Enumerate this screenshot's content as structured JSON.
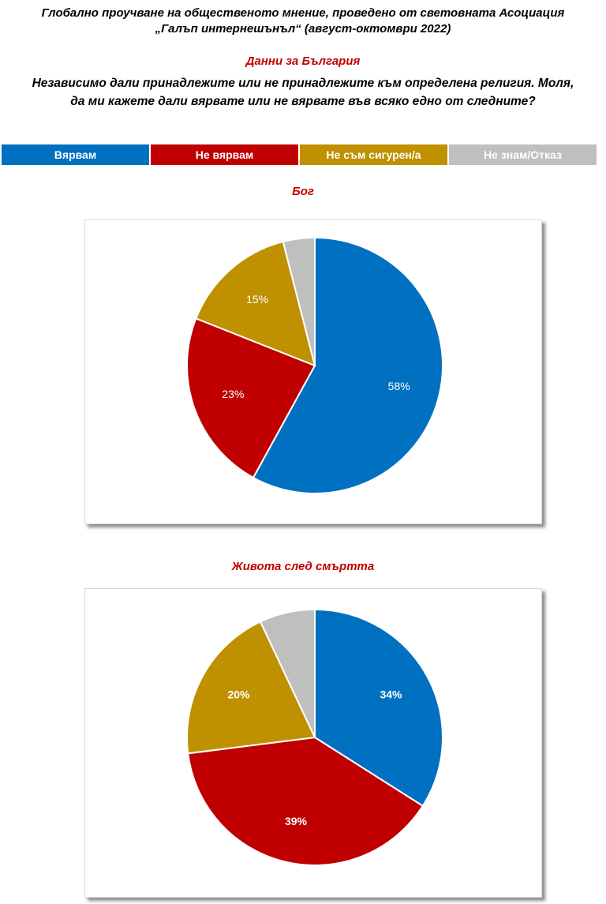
{
  "header": {
    "title_line1": "Глобално проучване на общественото мнение, проведено от световната Асоциация",
    "title_line2": "„Галъп интернешънъл“ (август-октомври 2022)",
    "country": "Данни за България",
    "question_line1": "Независимо дали принадлежите или не принадлежите към определена религия. Моля,",
    "question_line2": "да ми кажете дали вярвате или не вярвате във всяко едно от следните?"
  },
  "legend": [
    {
      "label": "Вярвам",
      "color": "#0070c0"
    },
    {
      "label": "Не вярвам",
      "color": "#c00000"
    },
    {
      "label": "Не съм сигурен/а",
      "color": "#bf9000"
    },
    {
      "label": "Не знам/Отказ",
      "color": "#bfbfbf"
    }
  ],
  "chart_data": [
    {
      "type": "pie",
      "title": "Бог",
      "categories": [
        "Вярвам",
        "Не вярвам",
        "Не съм сигурен/а",
        "Не знам/Отказ"
      ],
      "values": [
        58,
        23,
        15,
        4
      ],
      "labels": [
        "58%",
        "23%",
        "15%",
        ""
      ],
      "colors": [
        "#0070c0",
        "#c00000",
        "#bf9000",
        "#bfbfbf"
      ],
      "bold_labels": false
    },
    {
      "type": "pie",
      "title": "Живота след смъртта",
      "categories": [
        "Вярвам",
        "Не вярвам",
        "Не съм сигурен/а",
        "Не знам/Отказ"
      ],
      "values": [
        34,
        39,
        20,
        7
      ],
      "labels": [
        "34%",
        "39%",
        "20%",
        ""
      ],
      "colors": [
        "#0070c0",
        "#c00000",
        "#bf9000",
        "#bfbfbf"
      ],
      "bold_labels": true
    }
  ]
}
